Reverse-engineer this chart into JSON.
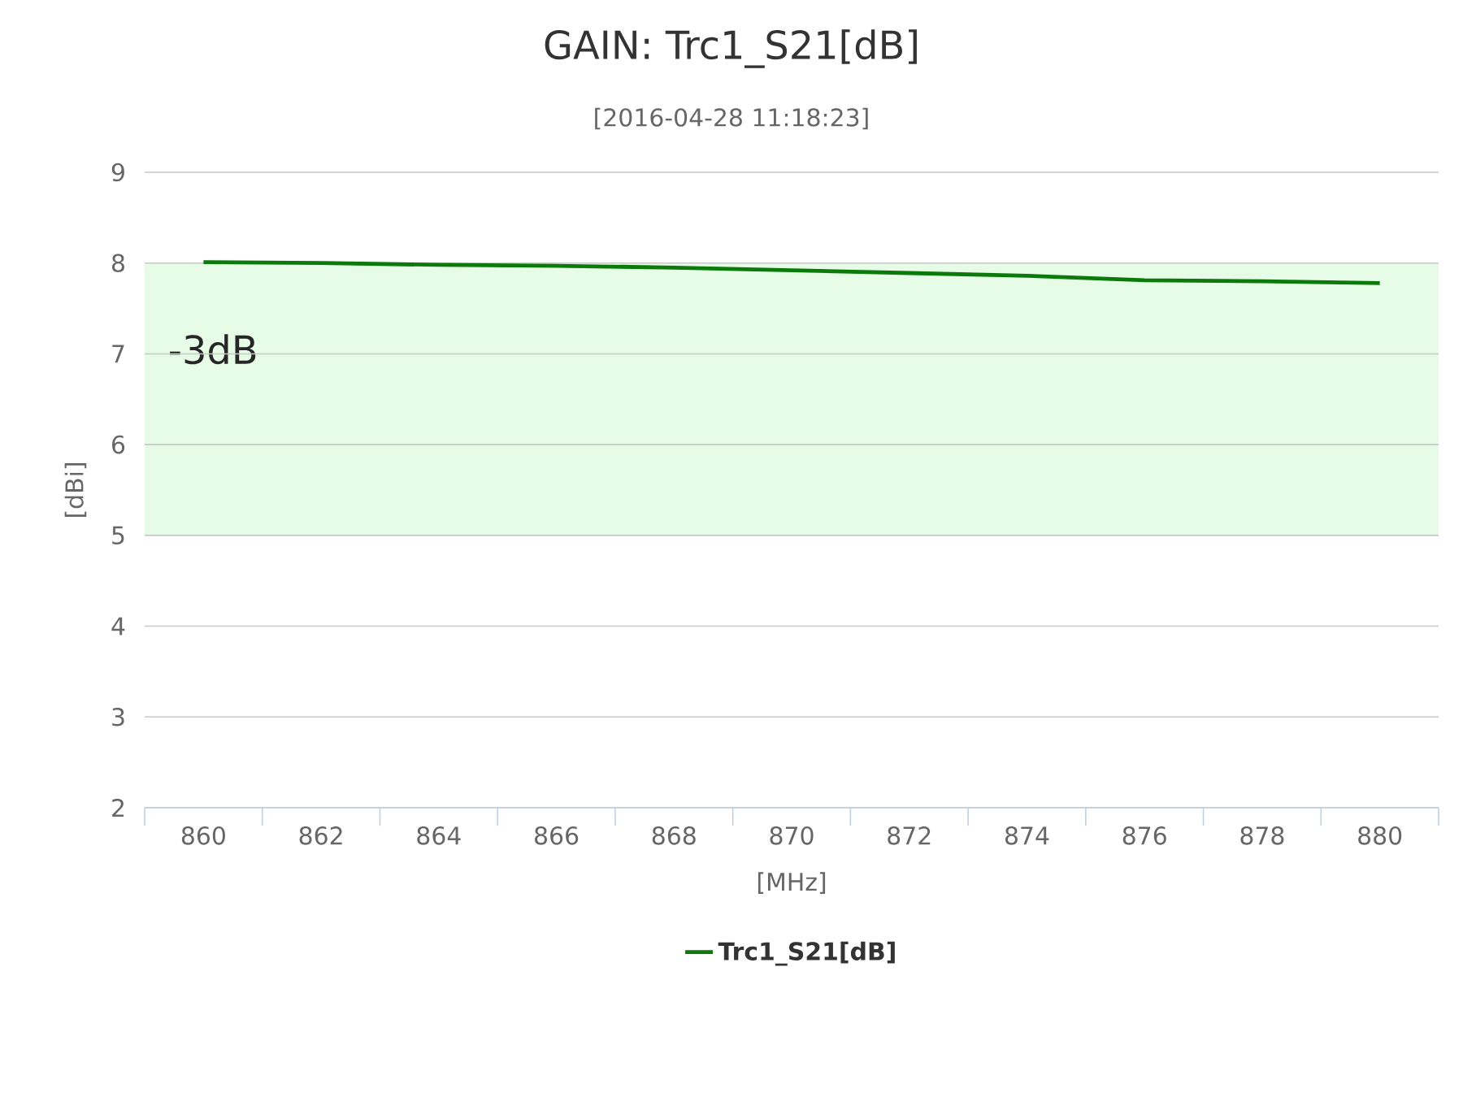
{
  "chart_data": {
    "type": "line",
    "title": "GAIN: Trc1_S21[dB]",
    "subtitle": "[2016-04-28 11:18:23]",
    "xlabel": "[MHz]",
    "ylabel": "[dBi]",
    "categories": [
      "860",
      "862",
      "864",
      "866",
      "868",
      "870",
      "872",
      "874",
      "876",
      "878",
      "880"
    ],
    "series": [
      {
        "name": "Trc1_S21[dB]",
        "color": "#0b7a0b",
        "values": [
          8.01,
          8.0,
          7.98,
          7.97,
          7.95,
          7.92,
          7.89,
          7.86,
          7.81,
          7.8,
          7.78
        ]
      }
    ],
    "ylim": [
      2,
      9
    ],
    "yticks": [
      2,
      3,
      4,
      5,
      6,
      7,
      8,
      9
    ],
    "bands": [
      {
        "axis": "y",
        "from": 5,
        "to": 8,
        "label": "-3dB",
        "color": "#e6fce6"
      }
    ],
    "grid": "y",
    "legend": "bottom"
  }
}
